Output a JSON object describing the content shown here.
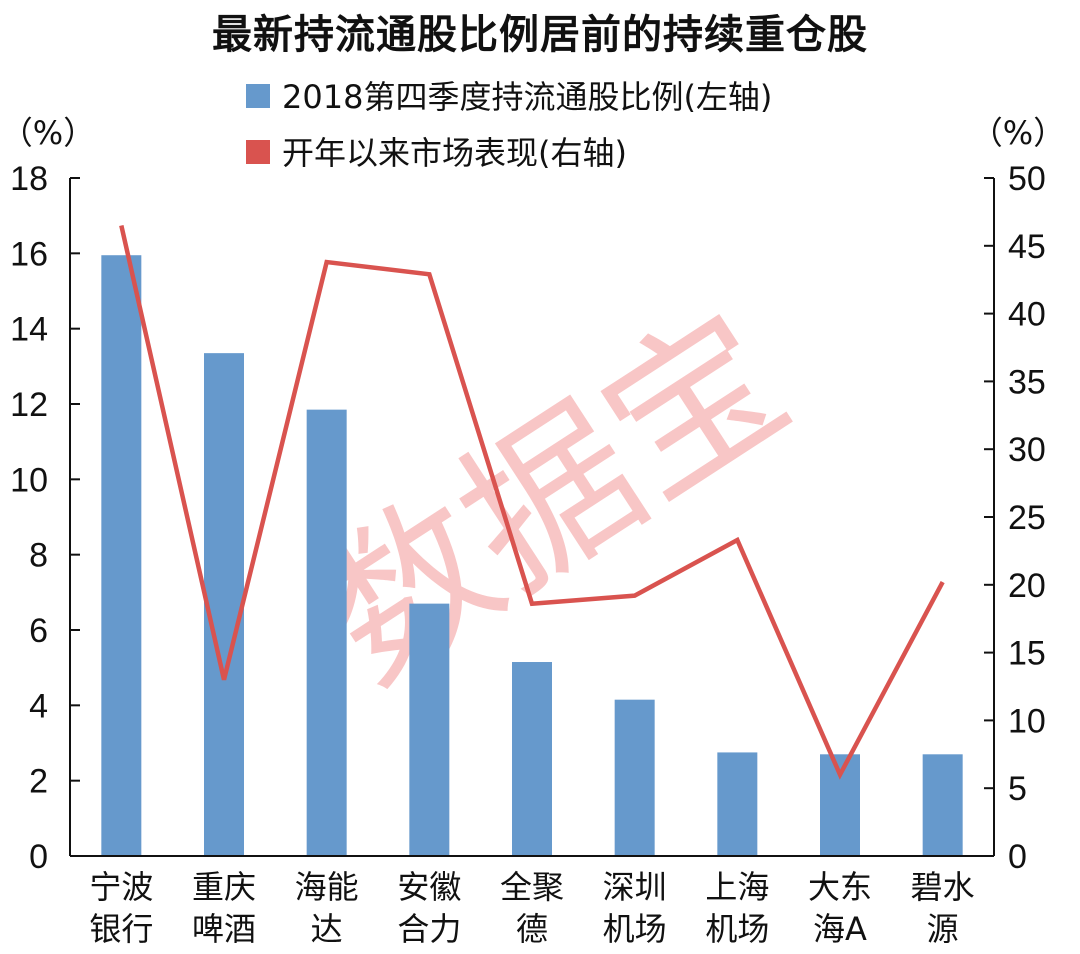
{
  "title": "最新持流通股比例居前的持续重仓股",
  "watermark": "数据宝",
  "chart_data": {
    "type": "bar",
    "categories": [
      [
        "宁波",
        "银行"
      ],
      [
        "重庆",
        "啤酒"
      ],
      [
        "海能",
        "达"
      ],
      [
        "安徽",
        "合力"
      ],
      [
        "全聚",
        "德"
      ],
      [
        "深圳",
        "机场"
      ],
      [
        "上海",
        "机场"
      ],
      [
        "大东",
        "海A"
      ],
      [
        "碧水",
        "源"
      ]
    ],
    "series": [
      {
        "name": "2018第四季度持流通股比例(左轴)",
        "type": "bar",
        "axis": "left",
        "color": "#6699cc",
        "values": [
          15.95,
          13.35,
          11.85,
          6.7,
          5.15,
          4.15,
          2.75,
          2.7,
          2.7
        ]
      },
      {
        "name": "开年以来市场表现(右轴)",
        "type": "line",
        "axis": "right",
        "color": "#d9534f",
        "values": [
          46.5,
          13.0,
          43.8,
          42.9,
          18.6,
          19.2,
          23.3,
          6.0,
          20.2
        ]
      }
    ],
    "left_axis": {
      "unit": "（%）",
      "ylim": [
        0,
        18
      ],
      "ticks": [
        0,
        2,
        4,
        6,
        8,
        10,
        12,
        14,
        16,
        18
      ]
    },
    "right_axis": {
      "unit": "（%）",
      "ylim": [
        0,
        50
      ],
      "ticks": [
        0,
        5,
        10,
        15,
        20,
        25,
        30,
        35,
        40,
        45,
        50
      ]
    },
    "legend_position": "top-center",
    "grid": false
  }
}
